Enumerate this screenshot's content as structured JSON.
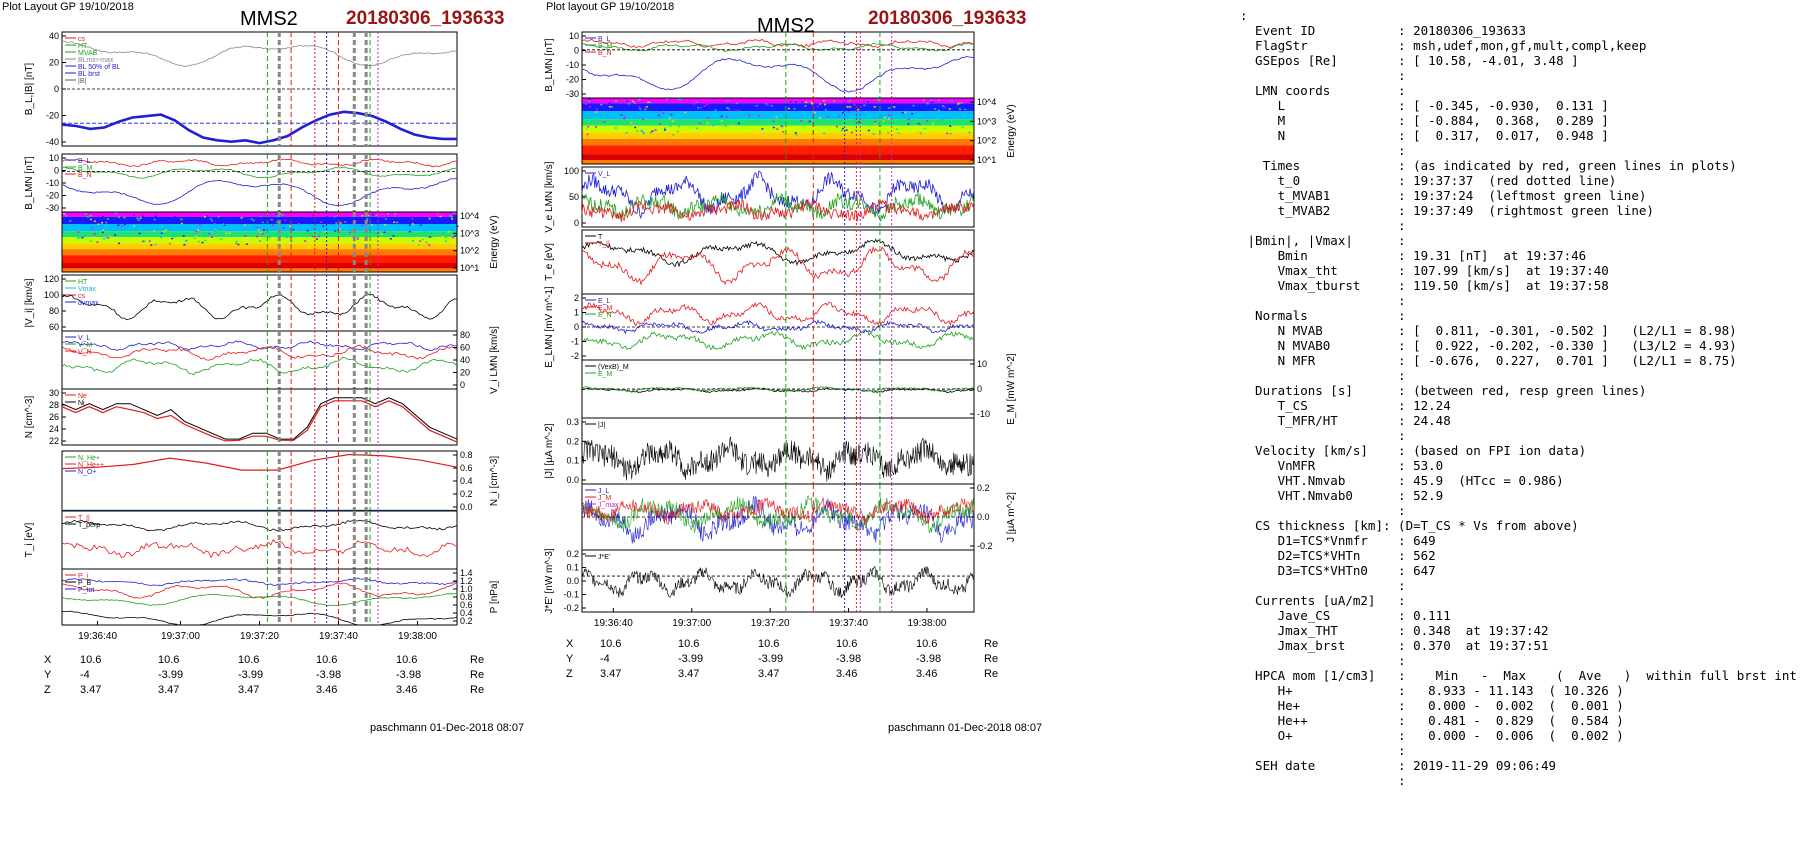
{
  "left": {
    "header": "Plot Layout GP 19/10/2018",
    "spacecraft": "MMS2",
    "event": "20180306_193633",
    "footer": "paschmann 01-Dec-2018 08:07",
    "panels": [
      {
        "ylabel": "B_L,|B| [nT]",
        "ticks_left": [
          "40",
          "20",
          "0",
          "-20",
          "-40"
        ],
        "legend": [
          "cs",
          "HT",
          "MVAB",
          "BLmin-max",
          "BL 50% of BL",
          "BL brst",
          "|B|"
        ],
        "legend_colors": [
          "#e41a1c",
          "#1fa21f",
          "#1fa21f",
          "#888888",
          "#1f1fd6",
          "#1f1fd6",
          "#555555"
        ]
      },
      {
        "ylabel": "B_LMN [nT]",
        "ticks_left": [
          "10",
          "0",
          "-10",
          "-20",
          "-30"
        ],
        "legend": [
          "B_L",
          "B_M",
          "B_N"
        ],
        "legend_colors": [
          "#1f1fd6",
          "#1fa21f",
          "#e41a1c"
        ]
      },
      {
        "ylabel": "Energy (eV)",
        "ticks_right": [
          "10^4",
          "10^3",
          "10^2",
          "10^1"
        ]
      },
      {
        "ylabel": "|V_i| [km/s]",
        "ticks_left": [
          "120",
          "100",
          "80",
          "60"
        ],
        "legend": [
          "HT",
          "Vmax",
          "cs",
          "dvmax"
        ],
        "legend_colors": [
          "#1fa21f",
          "#18b8d8",
          "#e41a1c",
          "#1f1fd6"
        ]
      },
      {
        "ylabel": "V_i LMN [km/s]",
        "ticks_right": [
          "80",
          "60",
          "40",
          "20",
          "0"
        ],
        "legend": [
          "V_L",
          "V_M",
          "V_N"
        ],
        "legend_colors": [
          "#1f1fd6",
          "#1fa21f",
          "#e41a1c"
        ]
      },
      {
        "ylabel": "N [cm^-3]",
        "ticks_left": [
          "30",
          "28",
          "26",
          "24",
          "22"
        ],
        "legend": [
          "Ne",
          "Ni"
        ],
        "legend_colors": [
          "#e41a1c",
          "#000000"
        ]
      },
      {
        "ylabel": "N_i [cm^-3]",
        "ticks_right": [
          "0.8",
          "0.6",
          "0.4",
          "0.2",
          "0.0"
        ],
        "legend": [
          "N_He+",
          "N_He++",
          "N_O+"
        ],
        "legend_colors": [
          "#1fa21f",
          "#e41a1c",
          "#1f1fd6"
        ]
      },
      {
        "ylabel": "T_i [eV]",
        "legend": [
          "T_||",
          "T_perp"
        ],
        "legend_colors": [
          "#e41a1c",
          "#000000"
        ]
      },
      {
        "ylabel": "P [nPa]",
        "ticks_right": [
          "1.4",
          "1.2",
          "1.0",
          "0.8",
          "0.6",
          "0.4",
          "0.2"
        ],
        "legend": [
          "P_i",
          "P_B",
          "P_tot"
        ],
        "legend_colors": [
          "#e41a1c",
          "#000000",
          "#1f1fd6"
        ]
      }
    ],
    "time_ticks": [
      "19:36:40",
      "19:37:00",
      "19:37:20",
      "19:37:40",
      "19:38:00"
    ],
    "ephemeris": {
      "labels": [
        "X",
        "Y",
        "Z"
      ],
      "unit": "Re",
      "rows": [
        [
          "10.6",
          "10.6",
          "10.6",
          "10.6",
          "10.6"
        ],
        [
          "-4",
          "-3.99",
          "-3.99",
          "-3.98",
          "-3.98"
        ],
        [
          "3.47",
          "3.47",
          "3.47",
          "3.46",
          "3.46"
        ]
      ]
    }
  },
  "right": {
    "header": "Plot layout GP 19/10/2018",
    "spacecraft": "MMS2",
    "event": "20180306_193633",
    "footer": "paschmann 01-Dec-2018 08:07",
    "panels": [
      {
        "ylabel": "B_LMN [nT]",
        "ticks_left": [
          "10",
          "0",
          "-10",
          "-20",
          "-30"
        ],
        "legend": [
          "B_L",
          "B_M",
          "B_N"
        ],
        "legend_colors": [
          "#1f1fd6",
          "#1fa21f",
          "#e41a1c"
        ]
      },
      {
        "ylabel": "Energy (eV)",
        "ticks_right": [
          "10^4",
          "10^3",
          "10^2",
          "10^1"
        ]
      },
      {
        "ylabel": "V_e LMN [km/s]",
        "ticks_left": [
          "100",
          "50",
          "0"
        ],
        "legend": [
          "V_L"
        ],
        "legend_colors": [
          "#1f1fd6"
        ]
      },
      {
        "ylabel": "T_e [eV]",
        "legend": [
          "T",
          "T_||"
        ],
        "legend_colors": [
          "#000000",
          "#e41a1c"
        ]
      },
      {
        "ylabel": "E_LMN [mV m^-1]",
        "ticks_left": [
          "2",
          "1",
          "0",
          "-1",
          "-2"
        ],
        "legend": [
          "E_L",
          "E_M",
          "E_N"
        ],
        "legend_colors": [
          "#1f1fd6",
          "#e41a1c",
          "#1fa21f"
        ]
      },
      {
        "ylabel": "E_M [mW m^-2]",
        "ticks_right": [
          "10",
          "0",
          "-10"
        ],
        "legend": [
          "(VexB)_M",
          "E_M"
        ],
        "legend_colors": [
          "#000000",
          "#1fa21f"
        ]
      },
      {
        "ylabel": "|J| [µA m^-2]",
        "ticks_left": [
          "0.3",
          "0.2",
          "0.1",
          "0.0"
        ],
        "legend": [
          "|J|"
        ],
        "legend_colors": [
          "#000000"
        ]
      },
      {
        "ylabel": "J [µA m^-2]",
        "ticks_right": [
          "0.2",
          "0.0",
          "-0.2"
        ],
        "legend": [
          "J_L",
          "J_M",
          "J_max"
        ],
        "legend_colors": [
          "#1f1fd6",
          "#e41a1c",
          "#d020d0"
        ]
      },
      {
        "ylabel": "J*E' [nW m^-3]",
        "ticks_left": [
          "0.2",
          "0.1",
          "0.0",
          "-0.1",
          "-0.2"
        ],
        "legend": [
          "J*E'"
        ],
        "legend_colors": [
          "#000000"
        ]
      }
    ],
    "time_ticks": [
      "19:36:40",
      "19:37:00",
      "19:37:20",
      "19:37:40",
      "19:38:00"
    ],
    "ephemeris": {
      "labels": [
        "X",
        "Y",
        "Z"
      ],
      "unit": "Re",
      "rows": [
        [
          "10.6",
          "10.6",
          "10.6",
          "10.6",
          "10.6"
        ],
        [
          "-4",
          "-3.99",
          "-3.99",
          "-3.98",
          "-3.98"
        ],
        [
          "3.47",
          "3.47",
          "3.47",
          "3.46",
          "3.46"
        ]
      ]
    }
  },
  "info_lines": [
    ":",
    "  Event ID           : 20180306_193633",
    "  FlagStr            : msh,udef,mon,gf,mult,compl,keep",
    "  GSEpos [Re]        : [ 10.58, -4.01, 3.48 ]",
    "                     :",
    "  LMN coords         :",
    "     L               : [ -0.345, -0.930,  0.131 ]",
    "     M               : [ -0.884,  0.368,  0.289 ]",
    "     N               : [  0.317,  0.017,  0.948 ]",
    "                     :",
    "   Times             : (as indicated by red, green lines in plots)",
    "     t_0             : 19:37:37  (red dotted line)",
    "     t_MVAB1         : 19:37:24  (leftmost green line)",
    "     t_MVAB2         : 19:37:49  (rightmost green line)",
    "                     :",
    " |Bmin|, |Vmax|      :",
    "     Bmin            : 19.31 [nT]  at 19:37:46",
    "     Vmax_tht        : 107.99 [km/s]  at 19:37:40",
    "     Vmax_tburst     : 119.50 [km/s]  at 19:37:58",
    "                     :",
    "  Normals            :",
    "     N MVAB          : [  0.811, -0.301, -0.502 ]   (L2/L1 = 8.98)",
    "     N MVAB0         : [  0.922, -0.202, -0.330 ]   (L3/L2 = 4.93)",
    "     N MFR           : [ -0.676,  0.227,  0.701 ]   (L2/L1 = 8.75)",
    "                     :",
    "  Durations [s]      : (between red, resp green lines)",
    "     T_CS            : 12.24",
    "     T_MFR/HT        : 24.48",
    "                     :",
    "  Velocity [km/s]    : (based on FPI ion data)",
    "     VnMFR           : 53.0",
    "     VHT.Nmvab       : 45.9  (HTcc = 0.986)",
    "     VHT.Nmvab0      : 52.9",
    "                     :",
    "  CS thickness [km]: (D=T_CS * Vs from above)",
    "     D1=TCS*Vnmfr    : 649",
    "     D2=TCS*VHTn     : 562",
    "     D3=TCS*VHTn0    : 647",
    "                     :",
    "  Currents [uA/m2]   :",
    "     Jave_CS         : 0.111",
    "     Jmax_THT        : 0.348  at 19:37:42",
    "     Jmax_brst       : 0.370  at 19:37:51",
    "                     :",
    "  HPCA mom [1/cm3]   :    Min   -  Max    (  Ave   )  within full brst int",
    "     H+              :   8.933 - 11.143  ( 10.326 )",
    "     He+             :   0.000 -  0.002  (  0.001 )",
    "     He++            :   0.481 -  0.829  (  0.584 )",
    "     O+              :   0.000 -  0.006  (  0.002 )",
    "                     :",
    "  SEH date           : 2019-11-29 09:06:49",
    "                     :"
  ],
  "chart_data": [
    {
      "type": "line",
      "title": "MMS2 20180306_193633 (left page)",
      "x_ticks": [
        "19:36:40",
        "19:37:00",
        "19:37:20",
        "19:37:40",
        "19:38:00"
      ],
      "series": [
        {
          "name": "B_L brst",
          "values": [
            -25,
            -28,
            -20,
            -18,
            -30,
            -37,
            -38,
            -35,
            -24,
            -16,
            -18,
            -25,
            -33,
            -36
          ]
        },
        {
          "name": "|B|",
          "values": [
            35,
            34,
            38,
            30,
            28,
            32,
            33,
            28,
            23,
            20,
            24,
            28,
            33,
            34
          ]
        }
      ],
      "markers": {
        "t_0": "19:37:37",
        "t_MVAB1": "19:37:24",
        "t_MVAB2": "19:37:49"
      }
    },
    {
      "type": "line",
      "title": "MMS2 20180306_193633 (right page)",
      "x_ticks": [
        "19:36:40",
        "19:37:00",
        "19:37:20",
        "19:37:40",
        "19:38:00"
      ],
      "series": [
        {
          "name": "B_L",
          "values": [
            -10,
            -15,
            -20,
            -25,
            -32,
            -34,
            -28,
            -20,
            -15,
            -18,
            -25,
            -30
          ]
        }
      ]
    }
  ]
}
